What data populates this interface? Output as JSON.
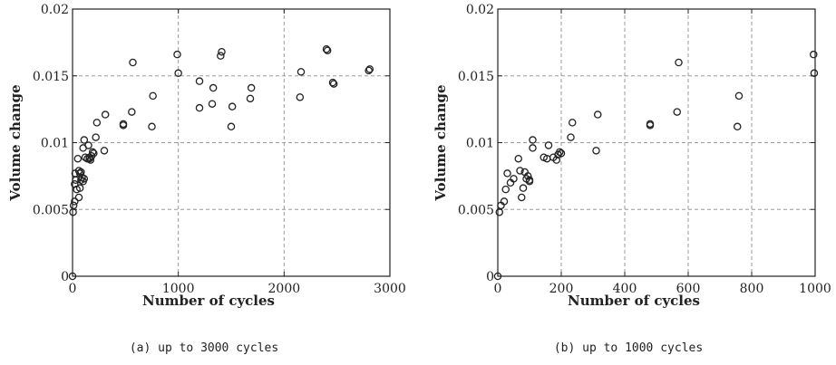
{
  "chart_data": [
    {
      "type": "scatter",
      "caption": "(a) up to 3000 cycles",
      "xlabel": "Number of cycles",
      "ylabel": "Volume change",
      "xlim": [
        0,
        3000
      ],
      "ylim": [
        0,
        0.02
      ],
      "xticks": [
        "0",
        "1000",
        "2000",
        "3000"
      ],
      "yticks": [
        "0",
        "0.005",
        "0.01",
        "0.015",
        "0.02"
      ],
      "grid": true,
      "marker": "open-circle",
      "x": [
        0,
        5,
        10,
        20,
        20,
        25,
        30,
        40,
        50,
        60,
        60,
        70,
        70,
        80,
        80,
        90,
        100,
        100,
        110,
        110,
        120,
        140,
        150,
        160,
        160,
        170,
        180,
        190,
        200,
        220,
        230,
        300,
        310,
        480,
        480,
        560,
        570,
        750,
        760,
        990,
        1000,
        1200,
        1200,
        1320,
        1330,
        1400,
        1410,
        1500,
        1510,
        1680,
        1690,
        2150,
        2160,
        2400,
        2410,
        2460,
        2470,
        2800,
        2810
      ],
      "y": [
        0.0,
        0.0048,
        0.0053,
        0.0056,
        0.0069,
        0.0077,
        0.0072,
        0.0065,
        0.0088,
        0.0059,
        0.0079,
        0.0066,
        0.0077,
        0.0072,
        0.0078,
        0.0074,
        0.0071,
        0.0096,
        0.0073,
        0.0102,
        0.0089,
        0.0088,
        0.0098,
        0.0088,
        0.0089,
        0.0087,
        0.009,
        0.0093,
        0.0092,
        0.0104,
        0.0115,
        0.0094,
        0.0121,
        0.0113,
        0.0114,
        0.0123,
        0.016,
        0.0112,
        0.0135,
        0.0166,
        0.0152,
        0.0126,
        0.0146,
        0.0129,
        0.0141,
        0.0165,
        0.0168,
        0.0112,
        0.0127,
        0.0133,
        0.0141,
        0.0134,
        0.0153,
        0.017,
        0.0169,
        0.0145,
        0.0144,
        0.0154,
        0.0155
      ]
    },
    {
      "type": "scatter",
      "caption": "(b) up to 1000 cycles",
      "xlabel": "Number of cycles",
      "ylabel": "Volume change",
      "xlim": [
        0,
        1000
      ],
      "ylim": [
        0,
        0.02
      ],
      "xticks": [
        "0",
        "200",
        "400",
        "600",
        "800",
        "1000"
      ],
      "yticks": [
        "0",
        "0.005",
        "0.01",
        "0.015",
        "0.02"
      ],
      "grid": true,
      "marker": "open-circle",
      "x": [
        0,
        5,
        10,
        20,
        25,
        30,
        40,
        50,
        65,
        70,
        75,
        80,
        85,
        90,
        95,
        100,
        100,
        110,
        110,
        145,
        155,
        160,
        175,
        185,
        190,
        195,
        200,
        230,
        235,
        310,
        315,
        480,
        480,
        565,
        570,
        755,
        760,
        995,
        997
      ],
      "y": [
        0.0,
        0.0048,
        0.0053,
        0.0056,
        0.0065,
        0.0077,
        0.007,
        0.0073,
        0.0088,
        0.0079,
        0.0059,
        0.0066,
        0.0078,
        0.0073,
        0.0075,
        0.0071,
        0.0072,
        0.0096,
        0.0102,
        0.0089,
        0.0088,
        0.0098,
        0.0089,
        0.0087,
        0.0091,
        0.0093,
        0.0092,
        0.0104,
        0.0115,
        0.0094,
        0.0121,
        0.0113,
        0.0114,
        0.0123,
        0.016,
        0.0112,
        0.0135,
        0.0166,
        0.0152
      ]
    }
  ]
}
